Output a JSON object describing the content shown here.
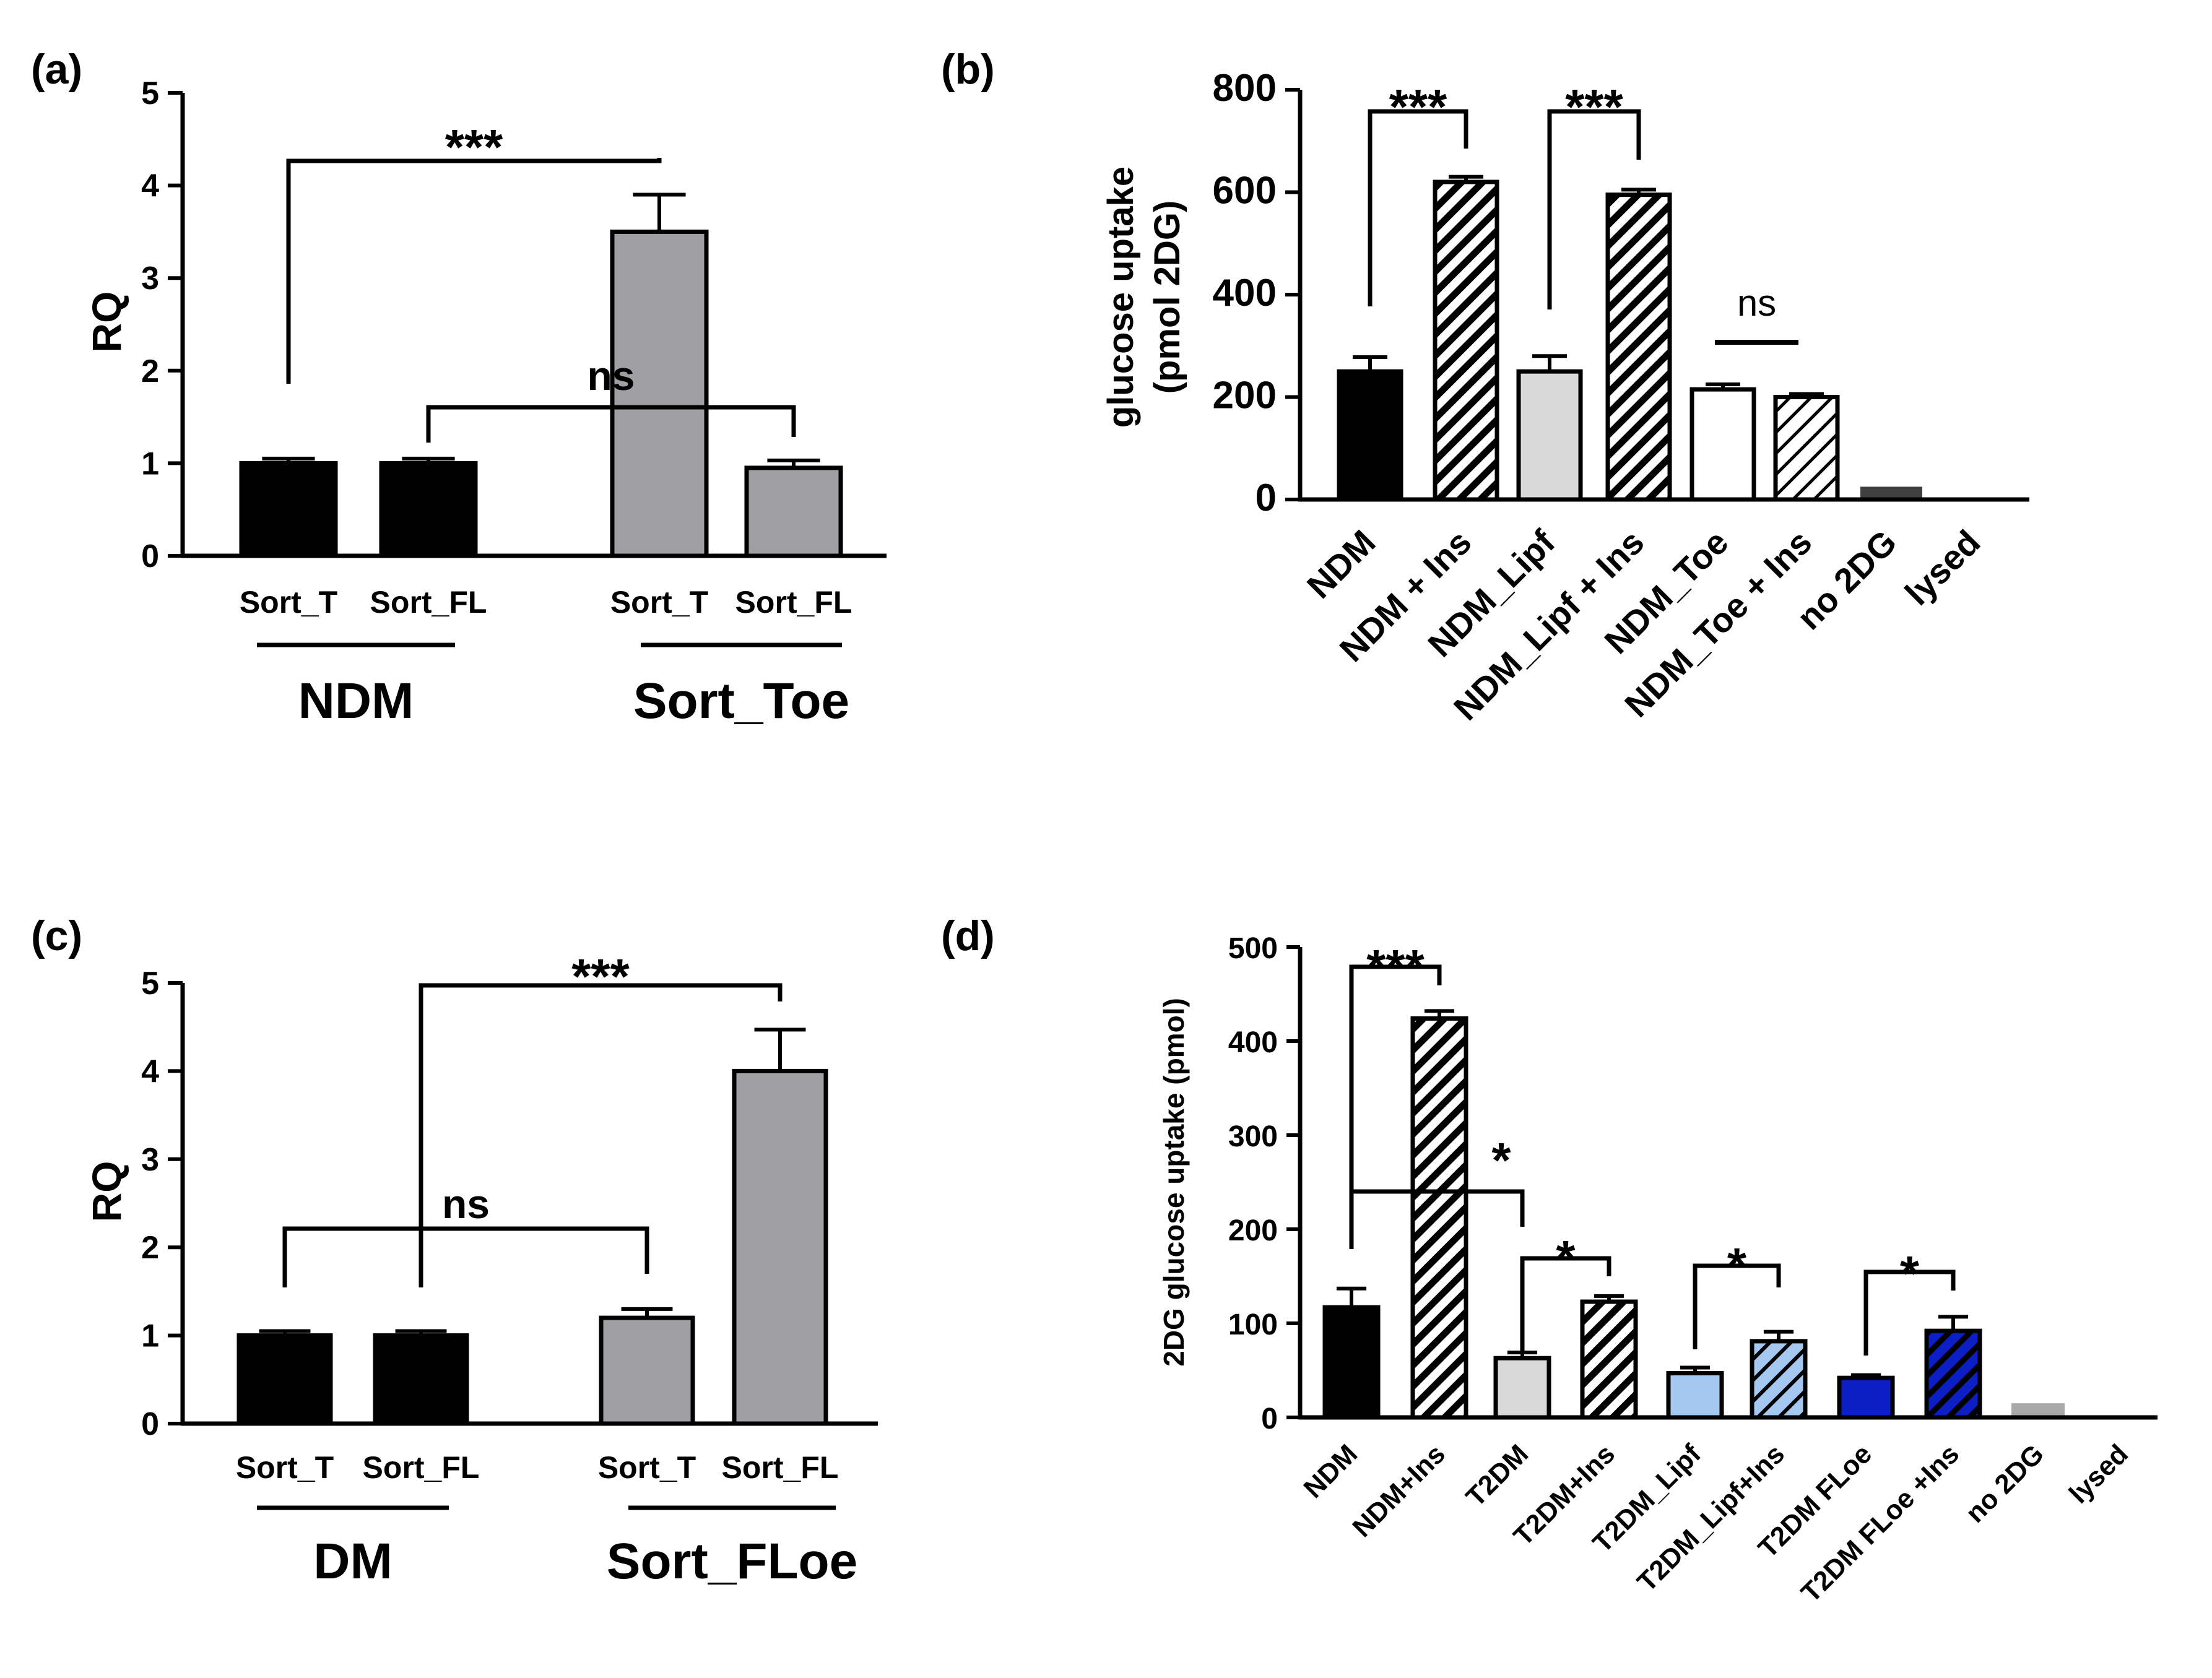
{
  "chart_data": [
    {
      "id": "a",
      "panel_label": "(a)",
      "type": "bar",
      "ylabel": "RQ",
      "ylim": [
        0,
        5
      ],
      "yticks": [
        "0",
        "1",
        "2",
        "3",
        "4",
        "5"
      ],
      "categories": [
        "Sort_T",
        "Sort_FL",
        "Sort_T",
        "Sort_FL"
      ],
      "values": [
        1.0,
        1.0,
        3.5,
        0.95
      ],
      "errors": [
        0.05,
        0.05,
        0.4,
        0.08
      ],
      "colors": [
        "#000000",
        "#000000",
        "#a0a0a4",
        "#a0a0a4"
      ],
      "groups": [
        {
          "label": "NDM",
          "members": [
            0,
            1
          ]
        },
        {
          "label": "Sort_Toe",
          "members": [
            2,
            3
          ]
        }
      ],
      "annotations": [
        {
          "text": "***",
          "from": 0,
          "to": 2
        },
        {
          "text": "ns",
          "from": 1,
          "to": 3
        }
      ]
    },
    {
      "id": "b",
      "panel_label": "(b)",
      "type": "bar",
      "ylabel_line1": "glucose uptake",
      "ylabel_line2": "(pmol 2DG)",
      "ylim": [
        0,
        800
      ],
      "yticks": [
        "0",
        "200",
        "400",
        "600",
        "800"
      ],
      "categories": [
        "NDM",
        "NDM + Ins",
        "NDM_Lipf",
        "NDM_Lipf + Ins",
        "NDM_Toe",
        "NDM_Toe + Ins",
        "no 2DG",
        "lysed"
      ],
      "values": [
        250,
        620,
        250,
        595,
        215,
        200,
        25,
        0
      ],
      "errors": [
        28,
        10,
        30,
        10,
        10,
        6,
        0,
        0
      ],
      "fills": [
        "solid",
        "hatch",
        "solid",
        "hatch",
        "solid",
        "hatch",
        "solid",
        "solid"
      ],
      "colors": [
        "#000000",
        "#000000",
        "#d9d9d9",
        "#d9d9d9",
        "#ffffff",
        "#ffffff",
        "#404040",
        "#000000"
      ],
      "annotations": [
        {
          "text": "***",
          "from": 0,
          "to": 1
        },
        {
          "text": "***",
          "from": 2,
          "to": 3
        },
        {
          "text": "ns",
          "from": 4,
          "to": 5
        }
      ]
    },
    {
      "id": "c",
      "panel_label": "(c)",
      "type": "bar",
      "ylabel": "RQ",
      "ylim": [
        0,
        5
      ],
      "yticks": [
        "0",
        "1",
        "2",
        "3",
        "4",
        "5"
      ],
      "categories": [
        "Sort_T",
        "Sort_FL",
        "Sort_T",
        "Sort_FL"
      ],
      "values": [
        1.0,
        1.0,
        1.2,
        4.0
      ],
      "errors": [
        0.05,
        0.05,
        0.1,
        0.47
      ],
      "colors": [
        "#000000",
        "#000000",
        "#a0a0a4",
        "#a0a0a4"
      ],
      "groups": [
        {
          "label": "DM",
          "members": [
            0,
            1
          ]
        },
        {
          "label": "Sort_FLoe",
          "members": [
            2,
            3
          ]
        }
      ],
      "annotations": [
        {
          "text": "***",
          "from": 1,
          "to": 3
        },
        {
          "text": "ns",
          "from": 0,
          "to": 2
        }
      ]
    },
    {
      "id": "d",
      "panel_label": "(d)",
      "type": "bar",
      "ylabel": "2DG glucose uptake (pmol)",
      "ylim": [
        0,
        500
      ],
      "yticks": [
        "0",
        "100",
        "200",
        "300",
        "400",
        "500"
      ],
      "categories": [
        "NDM",
        "NDM+Ins",
        "T2DM",
        "T2DM+Ins",
        "T2DM_Lipf",
        "T2DM_Lipf+Ins",
        "T2DM FLoe",
        "T2DM FLoe +Ins",
        "no 2DG",
        "lysed"
      ],
      "values": [
        117,
        424,
        63,
        123,
        47,
        81,
        42,
        92,
        15,
        0
      ],
      "errors": [
        20,
        8,
        6,
        6,
        6,
        10,
        3,
        15,
        0,
        0
      ],
      "fills": [
        "solid",
        "hatch",
        "solid",
        "hatch",
        "solid",
        "hatch",
        "solid",
        "hatch",
        "solid",
        "solid"
      ],
      "colors": [
        "#000000",
        "#000000",
        "#d9d9d9",
        "#d9d9d9",
        "#a5c8f0",
        "#a5c8f0",
        "#0c1fc4",
        "#0c1fc4",
        "#a9a9a9",
        "#000000"
      ],
      "annotations": [
        {
          "text": "***",
          "from": 0,
          "to": 1
        },
        {
          "text": "*",
          "from": 0,
          "to": 2
        },
        {
          "text": "*",
          "from": 2,
          "to": 3
        },
        {
          "text": "*",
          "from": 4,
          "to": 5
        },
        {
          "text": "*",
          "from": 6,
          "to": 7
        }
      ]
    }
  ]
}
